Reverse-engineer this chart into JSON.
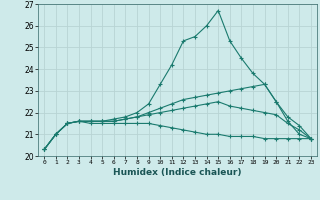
{
  "background_color": "#ceeaea",
  "grid_color": "#b8d4d4",
  "line_color": "#1a7a6e",
  "xlabel": "Humidex (Indice chaleur)",
  "xlim": [
    -0.5,
    23.5
  ],
  "ylim": [
    20,
    27
  ],
  "yticks": [
    20,
    21,
    22,
    23,
    24,
    25,
    26,
    27
  ],
  "xticks": [
    0,
    1,
    2,
    3,
    4,
    5,
    6,
    7,
    8,
    9,
    10,
    11,
    12,
    13,
    14,
    15,
    16,
    17,
    18,
    19,
    20,
    21,
    22,
    23
  ],
  "series": [
    {
      "x": [
        0,
        1,
        2,
        3,
        4,
        5,
        6,
        7,
        8,
        9,
        10,
        11,
        12,
        13,
        14,
        15,
        16,
        17,
        18,
        19,
        20,
        21,
        22,
        23
      ],
      "y": [
        20.3,
        21.0,
        21.5,
        21.6,
        21.6,
        21.6,
        21.7,
        21.8,
        22.0,
        22.4,
        23.3,
        24.2,
        25.3,
        25.5,
        26.0,
        26.7,
        25.3,
        24.5,
        23.8,
        23.3,
        22.5,
        21.8,
        21.4,
        20.8
      ]
    },
    {
      "x": [
        0,
        1,
        2,
        3,
        4,
        5,
        6,
        7,
        8,
        9,
        10,
        11,
        12,
        13,
        14,
        15,
        16,
        17,
        18,
        19,
        20,
        21,
        22,
        23
      ],
      "y": [
        20.3,
        21.0,
        21.5,
        21.6,
        21.6,
        21.6,
        21.6,
        21.7,
        21.8,
        22.0,
        22.2,
        22.4,
        22.6,
        22.7,
        22.8,
        22.9,
        23.0,
        23.1,
        23.2,
        23.3,
        22.5,
        21.6,
        21.0,
        20.8
      ]
    },
    {
      "x": [
        0,
        1,
        2,
        3,
        4,
        5,
        6,
        7,
        8,
        9,
        10,
        11,
        12,
        13,
        14,
        15,
        16,
        17,
        18,
        19,
        20,
        21,
        22,
        23
      ],
      "y": [
        20.3,
        21.0,
        21.5,
        21.6,
        21.6,
        21.6,
        21.6,
        21.7,
        21.8,
        21.9,
        22.0,
        22.1,
        22.2,
        22.3,
        22.4,
        22.5,
        22.3,
        22.2,
        22.1,
        22.0,
        21.9,
        21.5,
        21.2,
        20.8
      ]
    },
    {
      "x": [
        0,
        1,
        2,
        3,
        4,
        5,
        6,
        7,
        8,
        9,
        10,
        11,
        12,
        13,
        14,
        15,
        16,
        17,
        18,
        19,
        20,
        21,
        22,
        23
      ],
      "y": [
        20.3,
        21.0,
        21.5,
        21.6,
        21.5,
        21.5,
        21.5,
        21.5,
        21.5,
        21.5,
        21.4,
        21.3,
        21.2,
        21.1,
        21.0,
        21.0,
        20.9,
        20.9,
        20.9,
        20.8,
        20.8,
        20.8,
        20.8,
        20.8
      ]
    }
  ]
}
